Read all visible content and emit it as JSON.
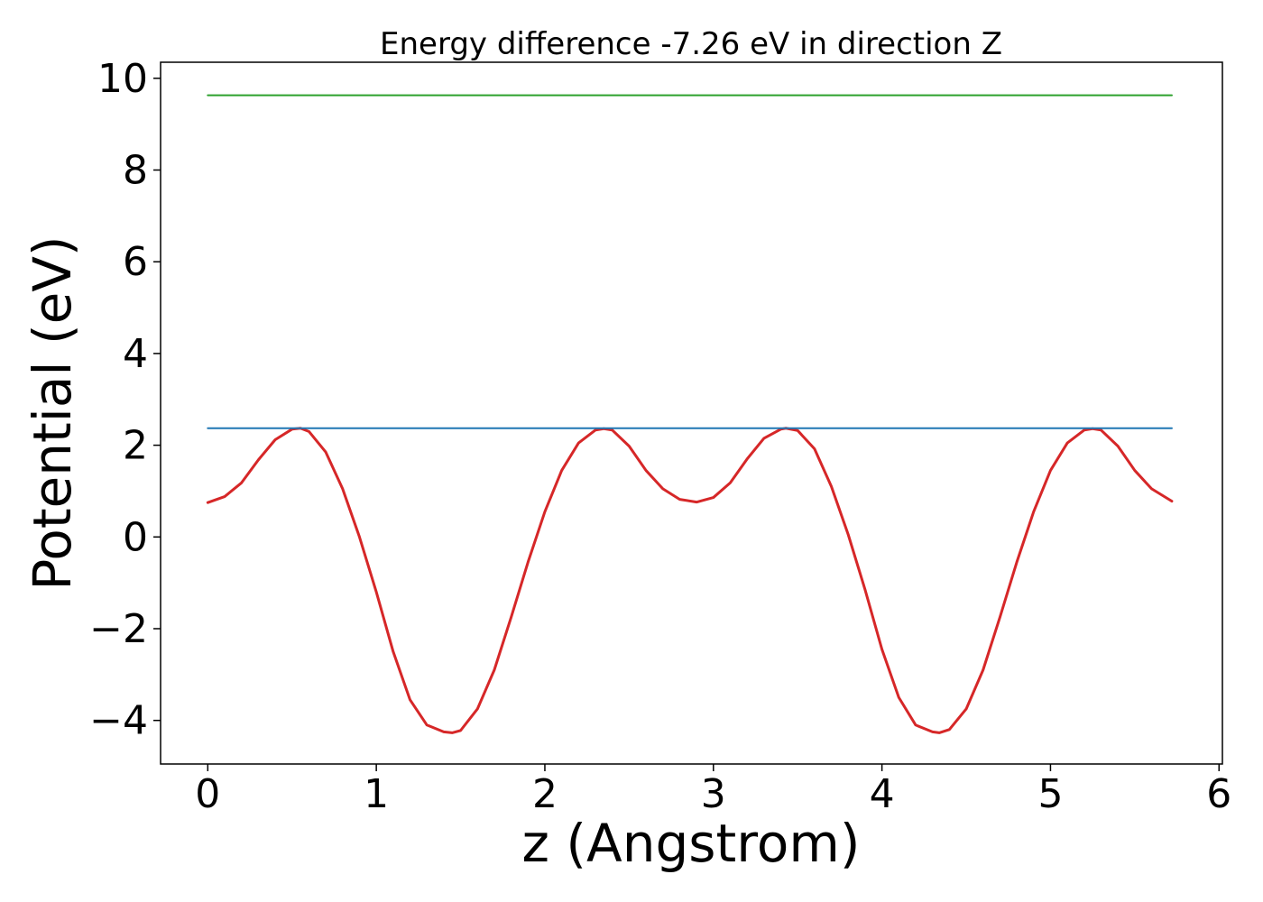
{
  "chart_data": {
    "type": "line",
    "title": "Energy difference -7.26 eV in direction Z",
    "xlabel": "z (Angstrom)",
    "ylabel": "Potential (eV)",
    "xlim": [
      -0.28,
      6.02
    ],
    "ylim": [
      -4.95,
      10.35
    ],
    "xticks": [
      0,
      1,
      2,
      3,
      4,
      5,
      6
    ],
    "xtick_labels": [
      "0",
      "1",
      "2",
      "3",
      "4",
      "5",
      "6"
    ],
    "yticks": [
      -4,
      -2,
      0,
      2,
      4,
      6,
      8,
      10
    ],
    "ytick_labels": [
      "−4",
      "−2",
      "0",
      "2",
      "4",
      "6",
      "8",
      "10"
    ],
    "grid": false,
    "series": [
      {
        "color": "#d62728",
        "x": [
          0.0,
          0.1,
          0.2,
          0.3,
          0.4,
          0.5,
          0.55,
          0.6,
          0.7,
          0.8,
          0.9,
          1.0,
          1.1,
          1.2,
          1.3,
          1.4,
          1.45,
          1.5,
          1.6,
          1.7,
          1.8,
          1.9,
          2.0,
          2.1,
          2.2,
          2.3,
          2.35,
          2.4,
          2.5,
          2.6,
          2.7,
          2.8,
          2.9,
          3.0,
          3.1,
          3.2,
          3.3,
          3.4,
          3.43,
          3.5,
          3.6,
          3.7,
          3.8,
          3.9,
          4.0,
          4.1,
          4.2,
          4.3,
          4.34,
          4.4,
          4.5,
          4.6,
          4.7,
          4.8,
          4.9,
          5.0,
          5.1,
          5.2,
          5.25,
          5.3,
          5.4,
          5.5,
          5.6,
          5.72
        ],
        "y": [
          0.75,
          0.88,
          1.18,
          1.68,
          2.12,
          2.35,
          2.37,
          2.3,
          1.85,
          1.05,
          0.0,
          -1.2,
          -2.5,
          -3.55,
          -4.1,
          -4.25,
          -4.27,
          -4.22,
          -3.75,
          -2.9,
          -1.75,
          -0.55,
          0.55,
          1.45,
          2.05,
          2.33,
          2.36,
          2.33,
          1.98,
          1.45,
          1.05,
          0.82,
          0.76,
          0.86,
          1.18,
          1.7,
          2.15,
          2.35,
          2.37,
          2.32,
          1.92,
          1.1,
          0.05,
          -1.15,
          -2.45,
          -3.5,
          -4.1,
          -4.25,
          -4.27,
          -4.2,
          -3.75,
          -2.9,
          -1.75,
          -0.55,
          0.55,
          1.45,
          2.05,
          2.33,
          2.36,
          2.33,
          1.98,
          1.45,
          1.05,
          0.78
        ]
      },
      {
        "color": "#1f77b4",
        "x": [
          0.0,
          5.72
        ],
        "y": [
          2.37,
          2.37
        ]
      },
      {
        "color": "#2ca02c",
        "x": [
          0.0,
          5.72
        ],
        "y": [
          9.63,
          9.63
        ]
      }
    ]
  }
}
